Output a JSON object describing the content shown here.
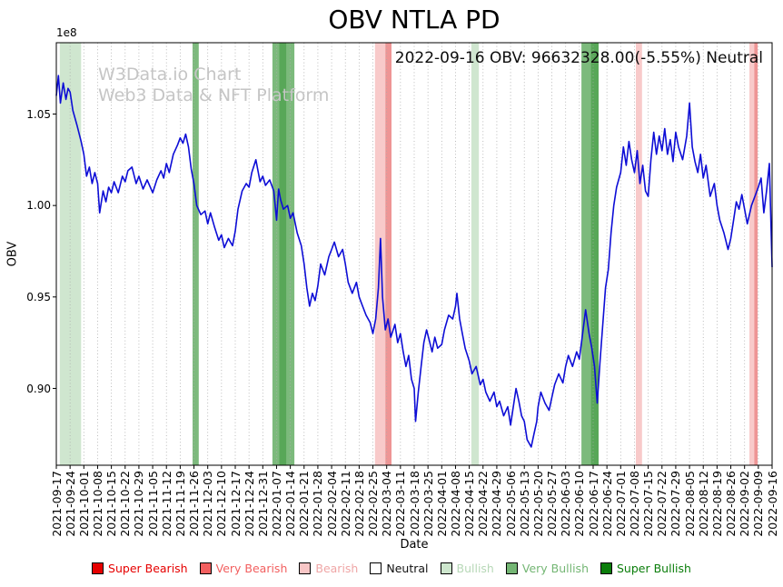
{
  "chart_data": {
    "type": "line",
    "title": "OBV NTLA PD",
    "annotation": "2022-09-16 OBV: 96632328.00(-5.55%) Neutral",
    "watermark": {
      "line1": "W3Data.io Chart",
      "line2": "Web3 Data & NFT Platform"
    },
    "xlabel": "Date",
    "ylabel": "OBV",
    "y_offset_label": "1e8",
    "ylim": [
      0.858,
      1.089
    ],
    "yticks": [
      0.9,
      0.95,
      1.0,
      1.05
    ],
    "x_range": [
      0,
      52
    ],
    "grid": "vertical-dotted",
    "legend_position": "bottom",
    "line_color": "#0d0dd6",
    "last_point": {
      "date": "2022-09-16",
      "obv": 96632328.0,
      "change_pct": -5.55,
      "signal": "Neutral"
    },
    "categories": [
      "2021-09-17",
      "2021-09-24",
      "2021-10-01",
      "2021-10-08",
      "2021-10-15",
      "2021-10-22",
      "2021-10-29",
      "2021-11-05",
      "2021-11-12",
      "2021-11-19",
      "2021-11-26",
      "2021-12-03",
      "2021-12-10",
      "2021-12-17",
      "2021-12-24",
      "2021-12-31",
      "2022-01-07",
      "2022-01-14",
      "2022-01-21",
      "2022-01-28",
      "2022-02-04",
      "2022-02-11",
      "2022-02-18",
      "2022-02-25",
      "2022-03-04",
      "2022-03-11",
      "2022-03-18",
      "2022-03-25",
      "2022-04-01",
      "2022-04-08",
      "2022-04-15",
      "2022-04-22",
      "2022-04-29",
      "2022-05-06",
      "2022-05-13",
      "2022-05-20",
      "2022-05-27",
      "2022-06-03",
      "2022-06-10",
      "2022-06-17",
      "2022-06-24",
      "2022-07-01",
      "2022-07-08",
      "2022-07-15",
      "2022-07-22",
      "2022-07-29",
      "2022-08-05",
      "2022-08-12",
      "2022-08-19",
      "2022-08-26",
      "2022-09-02",
      "2022-09-09",
      "2022-09-16"
    ],
    "points_units": "x in weeks since 2021-09-17, y in 1e8 OBV",
    "points": [
      [
        0,
        1.06
      ],
      [
        0.15,
        1.071
      ],
      [
        0.3,
        1.056
      ],
      [
        0.5,
        1.067
      ],
      [
        0.7,
        1.058
      ],
      [
        0.85,
        1.064
      ],
      [
        1,
        1.062
      ],
      [
        1.2,
        1.052
      ],
      [
        1.5,
        1.044
      ],
      [
        1.8,
        1.035
      ],
      [
        2,
        1.028
      ],
      [
        2.2,
        1.016
      ],
      [
        2.4,
        1.021
      ],
      [
        2.6,
        1.012
      ],
      [
        2.8,
        1.018
      ],
      [
        3,
        1.012
      ],
      [
        3.15,
        0.996
      ],
      [
        3.4,
        1.008
      ],
      [
        3.6,
        1.002
      ],
      [
        3.8,
        1.01
      ],
      [
        4,
        1.007
      ],
      [
        4.2,
        1.013
      ],
      [
        4.5,
        1.007
      ],
      [
        4.8,
        1.016
      ],
      [
        5,
        1.013
      ],
      [
        5.2,
        1.019
      ],
      [
        5.5,
        1.021
      ],
      [
        5.8,
        1.012
      ],
      [
        6,
        1.016
      ],
      [
        6.3,
        1.009
      ],
      [
        6.6,
        1.014
      ],
      [
        7,
        1.007
      ],
      [
        7.3,
        1.014
      ],
      [
        7.6,
        1.019
      ],
      [
        7.8,
        1.015
      ],
      [
        8,
        1.023
      ],
      [
        8.2,
        1.018
      ],
      [
        8.5,
        1.028
      ],
      [
        8.8,
        1.033
      ],
      [
        9,
        1.037
      ],
      [
        9.2,
        1.034
      ],
      [
        9.4,
        1.039
      ],
      [
        9.6,
        1.032
      ],
      [
        9.8,
        1.02
      ],
      [
        10,
        1.012
      ],
      [
        10.2,
        1.0
      ],
      [
        10.5,
        0.995
      ],
      [
        10.8,
        0.997
      ],
      [
        11,
        0.99
      ],
      [
        11.2,
        0.996
      ],
      [
        11.5,
        0.988
      ],
      [
        11.8,
        0.981
      ],
      [
        12,
        0.984
      ],
      [
        12.2,
        0.977
      ],
      [
        12.5,
        0.982
      ],
      [
        12.8,
        0.978
      ],
      [
        13,
        0.986
      ],
      [
        13.2,
        0.998
      ],
      [
        13.5,
        1.008
      ],
      [
        13.8,
        1.012
      ],
      [
        14,
        1.01
      ],
      [
        14.2,
        1.018
      ],
      [
        14.5,
        1.025
      ],
      [
        14.8,
        1.013
      ],
      [
        15,
        1.016
      ],
      [
        15.2,
        1.011
      ],
      [
        15.5,
        1.014
      ],
      [
        15.8,
        1.008
      ],
      [
        16,
        0.992
      ],
      [
        16.15,
        1.009
      ],
      [
        16.3,
        1.003
      ],
      [
        16.5,
        0.998
      ],
      [
        16.8,
        1.0
      ],
      [
        17,
        0.993
      ],
      [
        17.2,
        0.996
      ],
      [
        17.5,
        0.985
      ],
      [
        17.8,
        0.978
      ],
      [
        18,
        0.968
      ],
      [
        18.2,
        0.955
      ],
      [
        18.4,
        0.945
      ],
      [
        18.6,
        0.952
      ],
      [
        18.8,
        0.948
      ],
      [
        19,
        0.956
      ],
      [
        19.2,
        0.968
      ],
      [
        19.5,
        0.962
      ],
      [
        19.8,
        0.972
      ],
      [
        20,
        0.976
      ],
      [
        20.2,
        0.98
      ],
      [
        20.5,
        0.972
      ],
      [
        20.8,
        0.976
      ],
      [
        21,
        0.968
      ],
      [
        21.2,
        0.958
      ],
      [
        21.5,
        0.952
      ],
      [
        21.8,
        0.958
      ],
      [
        22,
        0.95
      ],
      [
        22.2,
        0.946
      ],
      [
        22.5,
        0.94
      ],
      [
        22.8,
        0.936
      ],
      [
        23,
        0.93
      ],
      [
        23.2,
        0.938
      ],
      [
        23.4,
        0.955
      ],
      [
        23.55,
        0.982
      ],
      [
        23.7,
        0.95
      ],
      [
        23.9,
        0.932
      ],
      [
        24.1,
        0.938
      ],
      [
        24.3,
        0.928
      ],
      [
        24.6,
        0.935
      ],
      [
        24.8,
        0.925
      ],
      [
        25,
        0.93
      ],
      [
        25.2,
        0.92
      ],
      [
        25.4,
        0.912
      ],
      [
        25.6,
        0.918
      ],
      [
        25.8,
        0.905
      ],
      [
        26,
        0.9
      ],
      [
        26.1,
        0.882
      ],
      [
        26.3,
        0.898
      ],
      [
        26.5,
        0.912
      ],
      [
        26.7,
        0.925
      ],
      [
        26.9,
        0.932
      ],
      [
        27.1,
        0.926
      ],
      [
        27.3,
        0.92
      ],
      [
        27.5,
        0.928
      ],
      [
        27.7,
        0.922
      ],
      [
        28,
        0.924
      ],
      [
        28.2,
        0.932
      ],
      [
        28.5,
        0.94
      ],
      [
        28.8,
        0.938
      ],
      [
        29,
        0.945
      ],
      [
        29.1,
        0.952
      ],
      [
        29.3,
        0.938
      ],
      [
        29.5,
        0.93
      ],
      [
        29.7,
        0.922
      ],
      [
        30,
        0.915
      ],
      [
        30.2,
        0.908
      ],
      [
        30.5,
        0.912
      ],
      [
        30.8,
        0.902
      ],
      [
        31,
        0.905
      ],
      [
        31.2,
        0.898
      ],
      [
        31.5,
        0.893
      ],
      [
        31.8,
        0.898
      ],
      [
        32,
        0.89
      ],
      [
        32.2,
        0.893
      ],
      [
        32.5,
        0.885
      ],
      [
        32.8,
        0.89
      ],
      [
        33,
        0.88
      ],
      [
        33.2,
        0.89
      ],
      [
        33.4,
        0.9
      ],
      [
        33.6,
        0.893
      ],
      [
        33.8,
        0.885
      ],
      [
        34,
        0.882
      ],
      [
        34.2,
        0.872
      ],
      [
        34.5,
        0.868
      ],
      [
        34.7,
        0.875
      ],
      [
        34.9,
        0.882
      ],
      [
        35,
        0.89
      ],
      [
        35.2,
        0.898
      ],
      [
        35.5,
        0.892
      ],
      [
        35.8,
        0.888
      ],
      [
        36,
        0.895
      ],
      [
        36.2,
        0.902
      ],
      [
        36.5,
        0.908
      ],
      [
        36.8,
        0.903
      ],
      [
        37,
        0.912
      ],
      [
        37.2,
        0.918
      ],
      [
        37.5,
        0.912
      ],
      [
        37.8,
        0.92
      ],
      [
        38,
        0.916
      ],
      [
        38.2,
        0.928
      ],
      [
        38.45,
        0.943
      ],
      [
        38.7,
        0.93
      ],
      [
        38.9,
        0.922
      ],
      [
        39.1,
        0.912
      ],
      [
        39.3,
        0.892
      ],
      [
        39.5,
        0.915
      ],
      [
        39.7,
        0.935
      ],
      [
        39.9,
        0.955
      ],
      [
        40.1,
        0.965
      ],
      [
        40.3,
        0.985
      ],
      [
        40.5,
        1.0
      ],
      [
        40.7,
        1.01
      ],
      [
        41,
        1.018
      ],
      [
        41.2,
        1.032
      ],
      [
        41.4,
        1.022
      ],
      [
        41.6,
        1.035
      ],
      [
        41.8,
        1.025
      ],
      [
        42,
        1.018
      ],
      [
        42.2,
        1.03
      ],
      [
        42.4,
        1.012
      ],
      [
        42.6,
        1.022
      ],
      [
        42.8,
        1.008
      ],
      [
        43,
        1.005
      ],
      [
        43.2,
        1.025
      ],
      [
        43.4,
        1.04
      ],
      [
        43.6,
        1.028
      ],
      [
        43.8,
        1.038
      ],
      [
        44,
        1.03
      ],
      [
        44.2,
        1.042
      ],
      [
        44.4,
        1.028
      ],
      [
        44.6,
        1.036
      ],
      [
        44.8,
        1.024
      ],
      [
        45,
        1.04
      ],
      [
        45.2,
        1.032
      ],
      [
        45.5,
        1.025
      ],
      [
        45.8,
        1.038
      ],
      [
        46,
        1.056
      ],
      [
        46.2,
        1.032
      ],
      [
        46.4,
        1.024
      ],
      [
        46.6,
        1.018
      ],
      [
        46.8,
        1.028
      ],
      [
        47,
        1.015
      ],
      [
        47.2,
        1.022
      ],
      [
        47.5,
        1.005
      ],
      [
        47.8,
        1.012
      ],
      [
        48,
        1.0
      ],
      [
        48.2,
        0.992
      ],
      [
        48.5,
        0.985
      ],
      [
        48.8,
        0.976
      ],
      [
        49,
        0.982
      ],
      [
        49.2,
        0.992
      ],
      [
        49.4,
        1.002
      ],
      [
        49.6,
        0.998
      ],
      [
        49.8,
        1.006
      ],
      [
        50,
        0.998
      ],
      [
        50.2,
        0.99
      ],
      [
        50.5,
        1.0
      ],
      [
        50.8,
        1.006
      ],
      [
        51,
        1.01
      ],
      [
        51.2,
        1.015
      ],
      [
        51.4,
        0.996
      ],
      [
        51.6,
        1.008
      ],
      [
        51.8,
        1.023
      ],
      [
        52,
        0.9663
      ]
    ],
    "bands": [
      {
        "start": 0.25,
        "end": 1.8,
        "type": "bullish"
      },
      {
        "start": 9.9,
        "end": 10.35,
        "type": "very_bullish"
      },
      {
        "start": 15.7,
        "end": 17.3,
        "type": "very_bullish"
      },
      {
        "start": 16.2,
        "end": 16.7,
        "type": "very_bullish_overlap"
      },
      {
        "start": 23.15,
        "end": 23.9,
        "type": "bearish"
      },
      {
        "start": 23.9,
        "end": 24.35,
        "type": "very_bearish"
      },
      {
        "start": 30.15,
        "end": 30.7,
        "type": "bullish"
      },
      {
        "start": 38.15,
        "end": 39.4,
        "type": "very_bullish"
      },
      {
        "start": 38.85,
        "end": 39.4,
        "type": "very_bullish_overlap"
      },
      {
        "start": 42.1,
        "end": 42.55,
        "type": "bearish"
      },
      {
        "start": 50.35,
        "end": 50.7,
        "type": "bearish"
      },
      {
        "start": 50.7,
        "end": 50.95,
        "type": "very_bearish"
      }
    ],
    "band_colors": {
      "bullish": "#cfe6cf",
      "very_bullish": "#7cba7c",
      "very_bullish_overlap": "#58a758",
      "bearish": "#f8caca",
      "very_bearish": "#ee9595"
    },
    "legend_items": [
      {
        "label": "Super Bearish",
        "fill": "#e60000",
        "text_color": "#e60000"
      },
      {
        "label": "Very Bearish",
        "fill": "#f25f5f",
        "text_color": "#f25f5f"
      },
      {
        "label": "Bearish",
        "fill": "#f8c6c6",
        "text_color": "#efa6a6"
      },
      {
        "label": "Neutral",
        "fill": "#ffffff",
        "text_color": "#111111"
      },
      {
        "label": "Bullish",
        "fill": "#cde6cd",
        "text_color": "#b7d8b7"
      },
      {
        "label": "Very Bullish",
        "fill": "#74b674",
        "text_color": "#74b674"
      },
      {
        "label": "Super Bullish",
        "fill": "#0a7d0a",
        "text_color": "#0a7d0a"
      }
    ]
  }
}
